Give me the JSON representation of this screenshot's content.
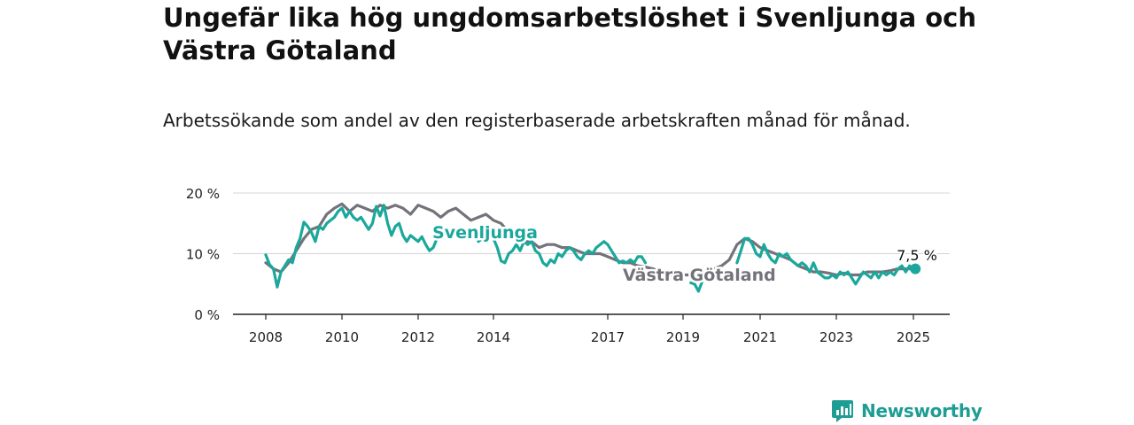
{
  "title": "Ungefär lika hög ungdomsarbetslöshet i Svenljunga och Västra Götaland",
  "subtitle": "Arbetssökande som andel av den registerbaserade arbetskraften månad för månad.",
  "brand": "Newsworthy",
  "colors": {
    "svenljunga": "#1ba89c",
    "vastra_gotaland": "#74727a",
    "brand": "#1e9d94"
  },
  "chart_data": {
    "type": "line",
    "x_ticks": [
      "2008",
      "2010",
      "2012",
      "2014",
      "2017",
      "2019",
      "2021",
      "2023",
      "2025"
    ],
    "y_ticks": [
      "0 %",
      "10 %",
      "20 %"
    ],
    "ylim": [
      0,
      20
    ],
    "xlim": [
      2007.75,
      2025.6
    ],
    "grid": true,
    "end_label": "7,5 %",
    "series": [
      {
        "name": "Svenljunga",
        "key": "svenljunga",
        "points": [
          [
            2008.0,
            9.8
          ],
          [
            2008.1,
            8.2
          ],
          [
            2008.2,
            7.5
          ],
          [
            2008.3,
            4.5
          ],
          [
            2008.4,
            7.0
          ],
          [
            2008.5,
            8.0
          ],
          [
            2008.6,
            9.0
          ],
          [
            2008.7,
            8.5
          ],
          [
            2008.8,
            11.0
          ],
          [
            2008.9,
            12.5
          ],
          [
            2009.0,
            15.2
          ],
          [
            2009.1,
            14.5
          ],
          [
            2009.2,
            13.5
          ],
          [
            2009.3,
            12.0
          ],
          [
            2009.4,
            14.5
          ],
          [
            2009.5,
            14.0
          ],
          [
            2009.6,
            15.0
          ],
          [
            2009.7,
            15.5
          ],
          [
            2009.8,
            16.0
          ],
          [
            2009.9,
            17.0
          ],
          [
            2010.0,
            17.5
          ],
          [
            2010.1,
            16.0
          ],
          [
            2010.2,
            17.0
          ],
          [
            2010.3,
            16.0
          ],
          [
            2010.4,
            15.5
          ],
          [
            2010.5,
            16.0
          ],
          [
            2010.6,
            15.0
          ],
          [
            2010.7,
            14.0
          ],
          [
            2010.8,
            15.0
          ],
          [
            2010.9,
            17.8
          ],
          [
            2011.0,
            16.2
          ],
          [
            2011.1,
            18.0
          ],
          [
            2011.2,
            15.0
          ],
          [
            2011.3,
            13.0
          ],
          [
            2011.4,
            14.5
          ],
          [
            2011.5,
            15.0
          ],
          [
            2011.6,
            13.0
          ],
          [
            2011.7,
            12.0
          ],
          [
            2011.8,
            13.0
          ],
          [
            2011.9,
            12.5
          ],
          [
            2012.0,
            12.0
          ],
          [
            2012.1,
            12.8
          ],
          [
            2012.2,
            11.5
          ],
          [
            2012.3,
            10.5
          ],
          [
            2012.4,
            11.0
          ],
          [
            2012.5,
            12.5
          ]
        ],
        "points_2": [
          [
            2013.6,
            12.0
          ],
          [
            2013.7,
            12.5
          ],
          [
            2013.8,
            14.0
          ],
          [
            2013.9,
            13.0
          ],
          [
            2014.0,
            12.5
          ],
          [
            2014.1,
            11.0
          ],
          [
            2014.2,
            8.8
          ],
          [
            2014.3,
            8.5
          ],
          [
            2014.4,
            10.0
          ],
          [
            2014.5,
            10.5
          ],
          [
            2014.6,
            11.5
          ],
          [
            2014.7,
            10.5
          ],
          [
            2014.8,
            12.0
          ],
          [
            2014.9,
            11.5
          ],
          [
            2015.0,
            12.0
          ],
          [
            2015.1,
            10.5
          ],
          [
            2015.2,
            10.0
          ],
          [
            2015.3,
            8.5
          ],
          [
            2015.4,
            8.0
          ],
          [
            2015.5,
            9.0
          ],
          [
            2015.6,
            8.5
          ],
          [
            2015.7,
            10.0
          ],
          [
            2015.8,
            9.5
          ],
          [
            2015.9,
            10.5
          ],
          [
            2016.0,
            11.0
          ],
          [
            2016.1,
            10.5
          ],
          [
            2016.2,
            9.5
          ],
          [
            2016.3,
            9.0
          ],
          [
            2016.4,
            10.0
          ],
          [
            2016.5,
            10.5
          ],
          [
            2016.6,
            10.0
          ],
          [
            2016.7,
            11.0
          ],
          [
            2016.8,
            11.5
          ],
          [
            2016.9,
            12.0
          ],
          [
            2017.0,
            11.5
          ],
          [
            2017.1,
            10.5
          ],
          [
            2017.2,
            9.5
          ],
          [
            2017.3,
            8.5
          ],
          [
            2017.4,
            8.8
          ],
          [
            2017.5,
            8.5
          ],
          [
            2017.6,
            9.0
          ],
          [
            2017.7,
            8.5
          ],
          [
            2017.8,
            9.5
          ],
          [
            2017.9,
            9.5
          ],
          [
            2018.0,
            8.5
          ]
        ],
        "points_3": [
          [
            2019.2,
            5.2
          ],
          [
            2019.3,
            5.0
          ],
          [
            2019.4,
            3.8
          ],
          [
            2019.5,
            5.5
          ]
        ],
        "points_4": [
          [
            2020.4,
            8.5
          ],
          [
            2020.5,
            10.5
          ],
          [
            2020.6,
            12.5
          ],
          [
            2020.7,
            12.5
          ],
          [
            2020.8,
            11.5
          ],
          [
            2020.9,
            10.0
          ],
          [
            2021.0,
            9.5
          ],
          [
            2021.1,
            11.5
          ],
          [
            2021.2,
            10.0
          ],
          [
            2021.3,
            9.0
          ],
          [
            2021.4,
            8.5
          ],
          [
            2021.5,
            10.0
          ],
          [
            2021.6,
            9.5
          ],
          [
            2021.7,
            10.0
          ],
          [
            2021.8,
            9.0
          ],
          [
            2021.9,
            8.5
          ],
          [
            2022.0,
            8.0
          ],
          [
            2022.1,
            8.5
          ],
          [
            2022.2,
            8.0
          ],
          [
            2022.3,
            7.0
          ],
          [
            2022.4,
            8.5
          ],
          [
            2022.5,
            7.0
          ],
          [
            2022.6,
            6.5
          ],
          [
            2022.7,
            6.0
          ],
          [
            2022.8,
            6.0
          ],
          [
            2022.9,
            6.5
          ],
          [
            2023.0,
            6.0
          ],
          [
            2023.1,
            7.0
          ],
          [
            2023.2,
            6.5
          ],
          [
            2023.3,
            7.0
          ],
          [
            2023.4,
            6.0
          ],
          [
            2023.5,
            5.0
          ],
          [
            2023.6,
            6.0
          ],
          [
            2023.7,
            7.0
          ],
          [
            2023.8,
            6.5
          ],
          [
            2023.9,
            6.0
          ],
          [
            2024.0,
            7.0
          ],
          [
            2024.1,
            6.0
          ],
          [
            2024.2,
            7.0
          ],
          [
            2024.3,
            6.5
          ],
          [
            2024.4,
            7.0
          ],
          [
            2024.5,
            6.5
          ],
          [
            2024.6,
            7.5
          ],
          [
            2024.7,
            8.0
          ],
          [
            2024.8,
            7.0
          ],
          [
            2024.9,
            8.0
          ],
          [
            2025.0,
            7.5
          ],
          [
            2025.05,
            7.5
          ]
        ]
      },
      {
        "name": "Västra Götaland",
        "key": "vastra_gotaland",
        "points": [
          [
            2008.0,
            8.5
          ],
          [
            2008.2,
            7.5
          ],
          [
            2008.4,
            7.0
          ],
          [
            2008.6,
            8.5
          ],
          [
            2008.8,
            10.5
          ],
          [
            2009.0,
            12.5
          ],
          [
            2009.2,
            14.0
          ],
          [
            2009.4,
            14.5
          ],
          [
            2009.6,
            16.5
          ],
          [
            2009.8,
            17.5
          ],
          [
            2010.0,
            18.2
          ],
          [
            2010.2,
            17.0
          ],
          [
            2010.4,
            18.0
          ],
          [
            2010.6,
            17.5
          ],
          [
            2010.8,
            17.0
          ],
          [
            2011.0,
            18.0
          ],
          [
            2011.2,
            17.5
          ],
          [
            2011.4,
            18.0
          ],
          [
            2011.6,
            17.5
          ],
          [
            2011.8,
            16.5
          ],
          [
            2012.0,
            18.0
          ],
          [
            2012.2,
            17.5
          ],
          [
            2012.4,
            17.0
          ],
          [
            2012.6,
            16.0
          ],
          [
            2012.8,
            17.0
          ],
          [
            2013.0,
            17.5
          ],
          [
            2013.2,
            16.5
          ],
          [
            2013.4,
            15.5
          ],
          [
            2013.6,
            16.0
          ],
          [
            2013.8,
            16.5
          ],
          [
            2014.0,
            15.5
          ],
          [
            2014.2,
            15.0
          ],
          [
            2014.4,
            13.5
          ],
          [
            2014.6,
            13.0
          ],
          [
            2014.8,
            12.0
          ],
          [
            2015.0,
            12.0
          ],
          [
            2015.2,
            11.0
          ],
          [
            2015.4,
            11.5
          ],
          [
            2015.6,
            11.5
          ],
          [
            2015.8,
            11.0
          ],
          [
            2016.0,
            11.0
          ],
          [
            2016.2,
            10.5
          ],
          [
            2016.4,
            10.0
          ],
          [
            2016.6,
            10.0
          ],
          [
            2016.8,
            10.0
          ],
          [
            2017.0,
            9.5
          ],
          [
            2017.2,
            9.0
          ],
          [
            2017.4,
            8.5
          ],
          [
            2017.6,
            8.5
          ],
          [
            2017.8,
            8.0
          ],
          [
            2018.0,
            7.8
          ],
          [
            2018.2,
            7.5
          ],
          [
            2018.4,
            7.0
          ],
          [
            2018.6,
            6.5
          ],
          [
            2018.8,
            6.5
          ],
          [
            2019.0,
            6.5
          ],
          [
            2019.2,
            6.5
          ],
          [
            2019.4,
            6.5
          ],
          [
            2019.6,
            7.0
          ],
          [
            2019.8,
            7.5
          ],
          [
            2020.0,
            8.0
          ],
          [
            2020.2,
            9.0
          ],
          [
            2020.4,
            11.5
          ],
          [
            2020.6,
            12.5
          ],
          [
            2020.8,
            12.0
          ],
          [
            2021.0,
            11.0
          ],
          [
            2021.2,
            10.5
          ],
          [
            2021.4,
            10.0
          ],
          [
            2021.6,
            9.5
          ],
          [
            2021.8,
            9.0
          ],
          [
            2022.0,
            8.0
          ],
          [
            2022.2,
            7.5
          ],
          [
            2022.4,
            7.0
          ],
          [
            2022.6,
            7.0
          ],
          [
            2022.8,
            6.8
          ],
          [
            2023.0,
            6.5
          ],
          [
            2023.2,
            6.8
          ],
          [
            2023.4,
            6.5
          ],
          [
            2023.6,
            6.5
          ],
          [
            2023.8,
            7.0
          ],
          [
            2024.0,
            7.0
          ],
          [
            2024.2,
            7.0
          ],
          [
            2024.4,
            7.2
          ],
          [
            2024.6,
            7.5
          ],
          [
            2024.8,
            7.5
          ],
          [
            2025.0,
            7.5
          ]
        ]
      }
    ],
    "series_labels": {
      "svenljunga": "Svenljunga",
      "vastra_gotaland": "Västra Götaland"
    }
  }
}
